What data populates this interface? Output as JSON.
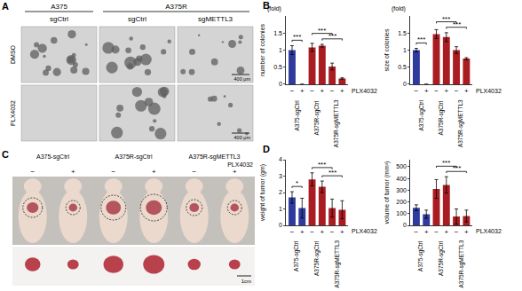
{
  "image_panels": [
    {
      "panel": "A",
      "column_groups": [
        {
          "label": "A375",
          "columns": 1
        },
        {
          "label": "A375R",
          "columns": 2
        }
      ],
      "columns": [
        "sgCtrl",
        "sgCtrl",
        "sgMETTL3"
      ],
      "rows": [
        "DMSO",
        "PLX4032"
      ],
      "scale_bar": "400 μm"
    },
    {
      "panel": "C",
      "groups": [
        "A375-sgCtrl",
        "A375R-sgCtrl",
        "A375R-sgMETTL3"
      ],
      "treatment": "PLX4032",
      "conditions": [
        "−",
        "+"
      ],
      "scale_bar": "1cm"
    }
  ],
  "chart_data": [
    {
      "panel": "B",
      "type": "bar",
      "y_title": "number of colonies",
      "y_unit": "(fold)",
      "categories": [
        "−",
        "+",
        "−",
        "+",
        "−",
        "+"
      ],
      "groups": [
        {
          "label": "A375-sgCtrl",
          "from": 0,
          "to": 1
        },
        {
          "label": "A375R-sgCtrl",
          "from": 2,
          "to": 3
        },
        {
          "label": "A375R-sgMETTL3",
          "from": 4,
          "to": 5
        }
      ],
      "treatment": "PLX4032",
      "values": [
        1.0,
        0,
        1.08,
        1.13,
        0.52,
        0.17
      ],
      "errors": [
        0.13,
        0,
        0.12,
        0.04,
        0.1,
        0.02
      ],
      "colors": [
        "#2e3b9c",
        "#2e3b9c",
        "#a91d22",
        "#a91d22",
        "#a91d22",
        "#a91d22"
      ],
      "ylim": [
        0,
        2
      ],
      "yticks": [
        0,
        0.5,
        1,
        1.5
      ],
      "grid": false,
      "significance": [
        {
          "from": 0,
          "to": 1,
          "label": "***"
        },
        {
          "from": 3,
          "to": 5,
          "label": "***"
        },
        {
          "from": 2,
          "to": 4,
          "label": "***"
        }
      ]
    },
    {
      "type": "bar",
      "y_title": "size of colonies",
      "y_unit": "(fold)",
      "categories": [
        "−",
        "+",
        "−",
        "+",
        "−",
        "+"
      ],
      "groups": [
        {
          "label": "A375-sgCtrl",
          "from": 0,
          "to": 1
        },
        {
          "label": "A375R-sgCtrl",
          "from": 2,
          "to": 3
        },
        {
          "label": "A375R-sgMETTL3",
          "from": 4,
          "to": 5
        }
      ],
      "treatment": "PLX4032",
      "values": [
        1.0,
        0,
        1.47,
        1.38,
        1.0,
        0.75
      ],
      "errors": [
        0.05,
        0,
        0.13,
        0.13,
        0.1,
        0.03
      ],
      "colors": [
        "#2e3b9c",
        "#2e3b9c",
        "#a91d22",
        "#a91d22",
        "#a91d22",
        "#a91d22"
      ],
      "ylim": [
        0,
        2
      ],
      "yticks": [
        0,
        0.5,
        1,
        1.5
      ],
      "grid": false,
      "significance": [
        {
          "from": 0,
          "to": 1,
          "label": "***"
        },
        {
          "from": 3,
          "to": 5,
          "label": "***"
        },
        {
          "from": 2,
          "to": 4,
          "label": "***"
        }
      ]
    },
    {
      "panel": "D",
      "type": "bar",
      "y_title": "weight of tumor (gm)",
      "categories": [
        "−",
        "+",
        "−",
        "+",
        "−",
        "+"
      ],
      "groups": [
        {
          "label": "A375-sgCtrl",
          "from": 0,
          "to": 1
        },
        {
          "label": "A375R-sgCtrl",
          "from": 2,
          "to": 3
        },
        {
          "label": "A375R-sgMETTL3",
          "from": 4,
          "to": 5
        }
      ],
      "treatment": "PLX4032",
      "values": [
        1.7,
        1.05,
        2.8,
        2.35,
        1.05,
        0.95
      ],
      "errors": [
        0.35,
        0.6,
        0.4,
        0.35,
        0.55,
        0.55
      ],
      "colors": [
        "#2e3b9c",
        "#2e3b9c",
        "#a91d22",
        "#a91d22",
        "#a91d22",
        "#a91d22"
      ],
      "ylim": [
        0,
        4
      ],
      "yticks": [
        0,
        1,
        2,
        3,
        4
      ],
      "grid": false,
      "significance": [
        {
          "from": 0,
          "to": 1,
          "label": "*"
        },
        {
          "from": 3,
          "to": 5,
          "label": "***"
        },
        {
          "from": 2,
          "to": 4,
          "label": "***"
        }
      ]
    },
    {
      "type": "bar",
      "y_title": "volume of tumor (mm³)",
      "categories": [
        "−",
        "+",
        "−",
        "+",
        "−",
        "+"
      ],
      "groups": [
        {
          "label": "A375-sgCtrl",
          "from": 0,
          "to": 1
        },
        {
          "label": "A375R-sgCtrl",
          "from": 2,
          "to": 3
        },
        {
          "label": "A375R-sgMETTL3",
          "from": 4,
          "to": 5
        }
      ],
      "treatment": "PLX4032",
      "values": [
        150,
        95,
        310,
        345,
        75,
        80
      ],
      "errors": [
        25,
        35,
        80,
        70,
        65,
        50
      ],
      "colors": [
        "#2e3b9c",
        "#2e3b9c",
        "#a91d22",
        "#a91d22",
        "#a91d22",
        "#a91d22"
      ],
      "ylim": [
        0,
        560
      ],
      "yticks": [
        0,
        100,
        200,
        300,
        400,
        500
      ],
      "grid": false,
      "significance": [
        {
          "from": 3,
          "to": 5,
          "label": "***"
        },
        {
          "from": 2,
          "to": 4,
          "label": "***"
        }
      ]
    }
  ]
}
